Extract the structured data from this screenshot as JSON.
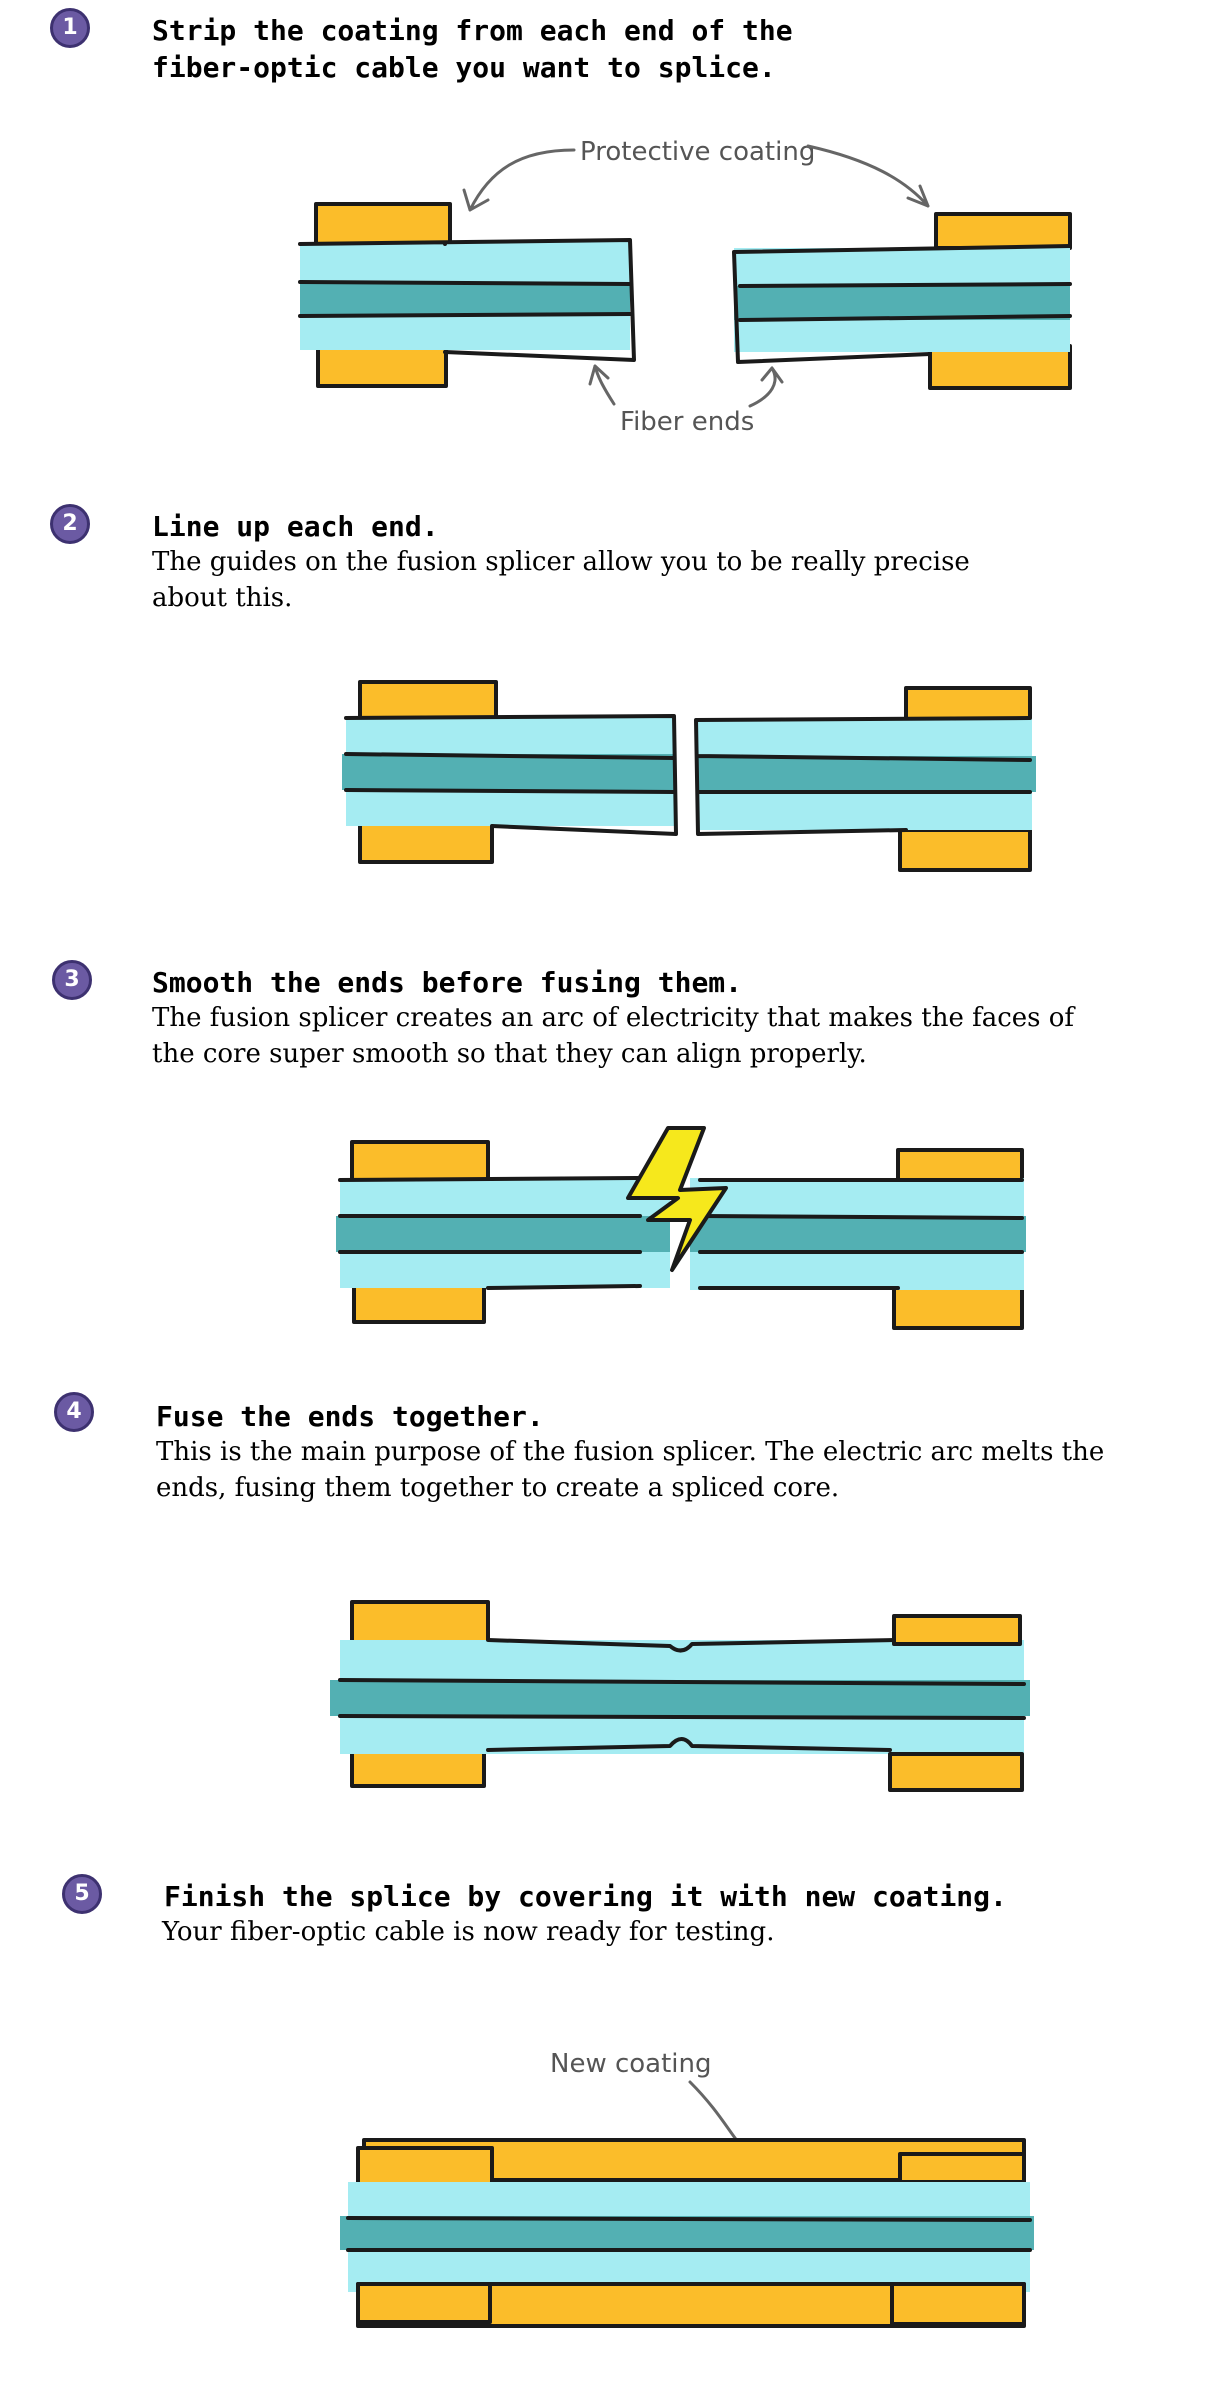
{
  "steps": [
    {
      "number": "1",
      "heading_lines": [
        "Strip the coating from each end of the",
        "fiber-optic cable you want to splice."
      ],
      "body": "",
      "annotations": {
        "top": "Protective coating",
        "bottom": "Fiber ends"
      }
    },
    {
      "number": "2",
      "heading_lines": [
        "Line up each end."
      ],
      "body_lines": [
        "The guides on the fusion splicer allow you to be really precise",
        "about this."
      ]
    },
    {
      "number": "3",
      "heading_lines": [
        "Smooth the ends before fusing them."
      ],
      "body_lines": [
        "The fusion splicer creates an arc of electricity that makes the faces of",
        "the core super smooth so that they can align properly."
      ]
    },
    {
      "number": "4",
      "heading_lines": [
        "Fuse the ends together."
      ],
      "body_lines": [
        "This is the main purpose of the fusion splicer. The electric arc melts the",
        "ends, fusing them together to create a spliced core."
      ]
    },
    {
      "number": "5",
      "heading_lines": [
        "Finish the splice by covering it with new coating."
      ],
      "body_lines": [
        "Your fiber-optic cable is now ready for testing."
      ],
      "annotations": {
        "top": "New coating"
      }
    }
  ],
  "colors": {
    "coating": "#fbbd2a",
    "cladding": "#a5ecf2",
    "core": "#53b0b3",
    "badge": "#6b5aa3",
    "spark": "#f6e81c"
  }
}
